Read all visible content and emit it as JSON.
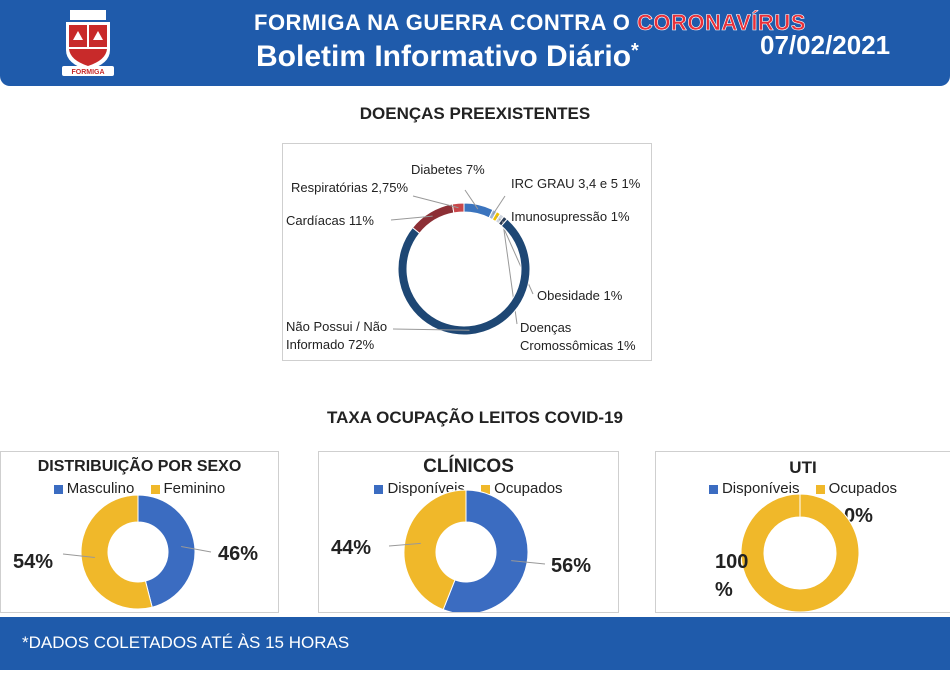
{
  "header": {
    "title_prefix": "FORMIGA NA GUERRA CONTRA O ",
    "title_highlight": "CORONAVÍRUS",
    "subtitle": "Boletim Informativo Diário",
    "asterisk": "*",
    "date": "07/02/2021",
    "crest_text": "FORMIGA",
    "colors": {
      "band": "#1f5bab",
      "highlight": "#e8303a"
    }
  },
  "sections": {
    "comorbidities_title": "DOENÇAS PREEXISTENTES",
    "beds_title": "TAXA OCUPAÇÃO LEITOS COVID-19"
  },
  "footer": {
    "note": "*DADOS COLETADOS ATÉ ÀS 15 HORAS"
  },
  "chart_data": [
    {
      "type": "pie",
      "style": "donut",
      "slices": [
        {
          "label": "Diabetes 7%",
          "value": 7,
          "color": "#3b74be"
        },
        {
          "label": "IRC GRAU 3,4 e 5 1%",
          "value": 1,
          "color": "#9fb5d6"
        },
        {
          "label": "Imunosupressão 1%",
          "value": 1,
          "color": "#f2c200"
        },
        {
          "label": "Obesidade 1%",
          "value": 1,
          "color": "#d0d6df"
        },
        {
          "label": "Doenças Cromossômicas 1%",
          "value": 1,
          "color": "#2c3d57"
        },
        {
          "label": "Não Possui / Não Informado 72%",
          "value": 72,
          "color": "#1e4774"
        },
        {
          "label": "Cardíacas 11%",
          "value": 11,
          "color": "#8c2f35"
        },
        {
          "label": "Respiratórias 2,75%",
          "value": 2.75,
          "color": "#c8474a"
        }
      ]
    },
    {
      "type": "pie",
      "style": "donut",
      "title": "DISTRIBUIÇÃO POR SEXO",
      "legend": [
        {
          "name": "Masculino",
          "color": "#3b6cc1"
        },
        {
          "name": "Feminino",
          "color": "#f0b82a"
        }
      ],
      "slices": [
        {
          "name": "Masculino",
          "value": 46,
          "label": "46%",
          "color": "#3b6cc1"
        },
        {
          "name": "Feminino",
          "value": 54,
          "label": "54%",
          "color": "#f0b82a"
        }
      ]
    },
    {
      "type": "pie",
      "style": "donut",
      "title": "CLÍNICOS",
      "legend": [
        {
          "name": "Disponíveis",
          "color": "#3b6cc1"
        },
        {
          "name": "Ocupados",
          "color": "#f0b82a"
        }
      ],
      "slices": [
        {
          "name": "Disponíveis",
          "value": 56,
          "label": "56%",
          "color": "#3b6cc1"
        },
        {
          "name": "Ocupados",
          "value": 44,
          "label": "44%",
          "color": "#f0b82a"
        }
      ]
    },
    {
      "type": "pie",
      "style": "donut",
      "title": "UTI",
      "legend": [
        {
          "name": "Disponíveis",
          "color": "#3b6cc1"
        },
        {
          "name": "Ocupados",
          "color": "#f0b82a"
        }
      ],
      "slices": [
        {
          "name": "Disponíveis",
          "value": 0,
          "label": "0%",
          "color": "#3b6cc1"
        },
        {
          "name": "Ocupados",
          "value": 100,
          "label": "100 %",
          "color": "#f0b82a"
        }
      ]
    }
  ]
}
